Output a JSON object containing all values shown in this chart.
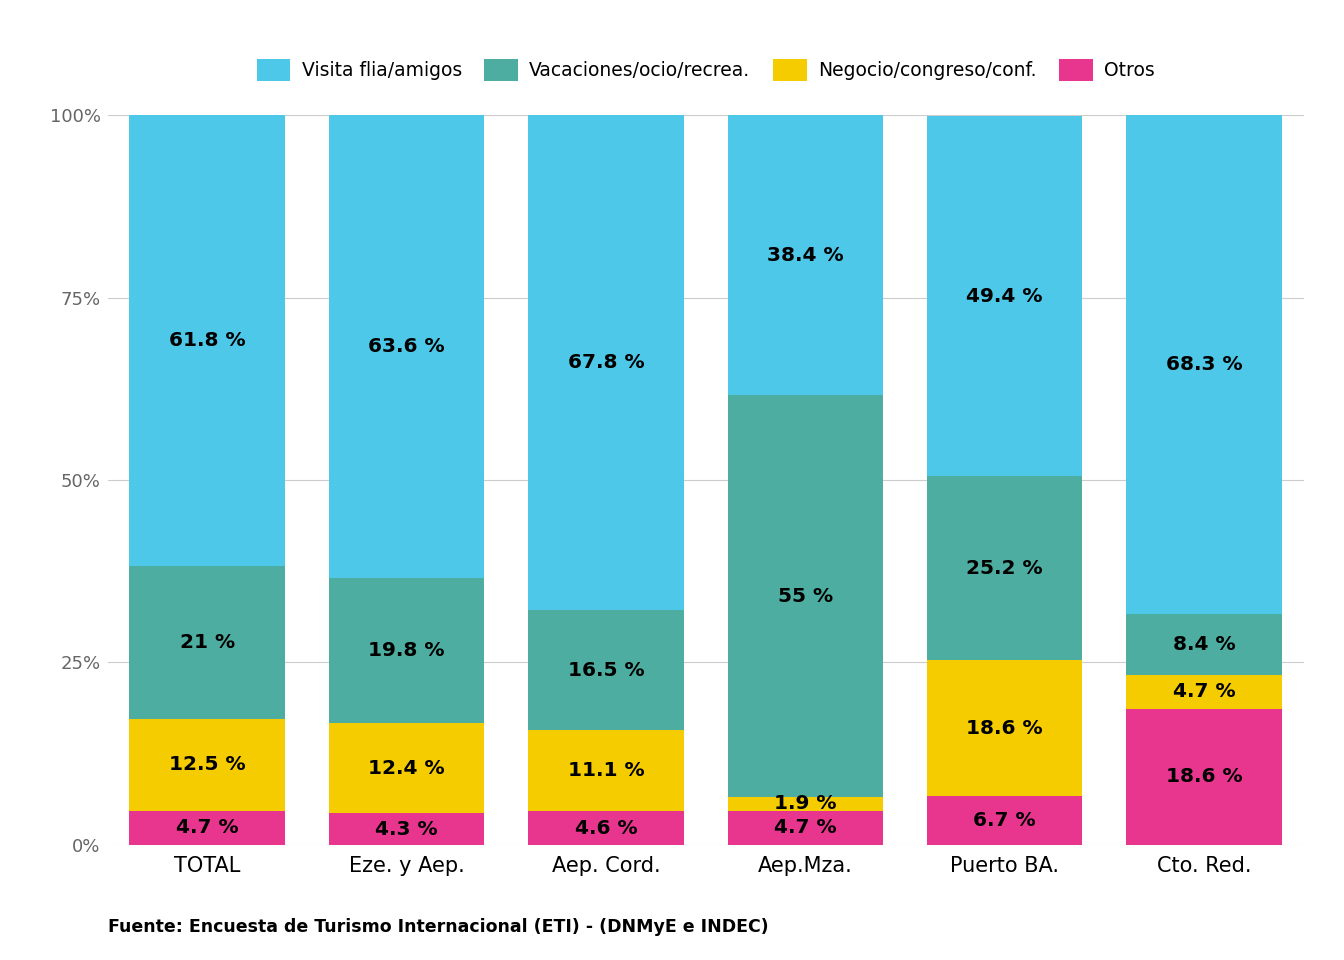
{
  "categories": [
    "TOTAL",
    "Eze. y Aep.",
    "Aep. Cord.",
    "Aep.Mza.",
    "Puerto BA.",
    "Cto. Red."
  ],
  "series": {
    "Visita flia/amigos": [
      61.8,
      63.6,
      67.8,
      38.4,
      49.4,
      68.3
    ],
    "Vacaciones/ocio/recrea.": [
      21.0,
      19.8,
      16.5,
      55.0,
      25.2,
      8.4
    ],
    "Negocio/congreso/conf.": [
      12.5,
      12.4,
      11.1,
      1.9,
      18.6,
      4.7
    ],
    "Otros": [
      4.7,
      4.3,
      4.6,
      4.7,
      6.7,
      18.6
    ]
  },
  "colors": {
    "Visita flia/amigos": "#4DC8E8",
    "Vacaciones/ocio/recrea.": "#4DADA0",
    "Negocio/congreso/conf.": "#F5CC00",
    "Otros": "#E8368F"
  },
  "stack_order": [
    "Otros",
    "Negocio/congreso/conf.",
    "Vacaciones/ocio/recrea.",
    "Visita flia/amigos"
  ],
  "legend_order": [
    "Visita flia/amigos",
    "Vacaciones/ocio/recrea.",
    "Negocio/congreso/conf.",
    "Otros"
  ],
  "source": "Fuente: Encuesta de Turismo Internacional (ETI) - (DNMyE e INDEC)",
  "background_color": "#FFFFFF",
  "grid_color": "#CCCCCC",
  "yticks": [
    0,
    25,
    50,
    75,
    100
  ],
  "ytick_labels": [
    "0%",
    "25%",
    "50%",
    "75%",
    "100%"
  ],
  "bar_width": 0.78,
  "label_min_size": 1.5,
  "label_fontsize": 14.5
}
